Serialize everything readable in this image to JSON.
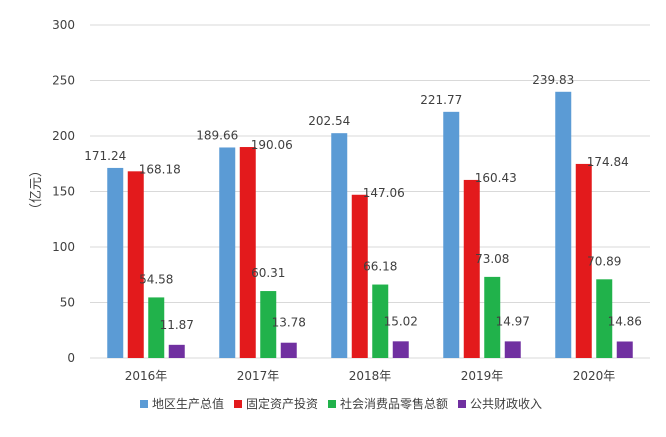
{
  "chart_data": {
    "type": "bar",
    "categories": [
      "2016年",
      "2017年",
      "2018年",
      "2019年",
      "2020年"
    ],
    "series": [
      {
        "name": "地区生产总值",
        "values": [
          171.24,
          189.66,
          202.54,
          221.77,
          239.83
        ],
        "color": "#5b9bd5"
      },
      {
        "name": "固定资产投资",
        "values": [
          168.18,
          190.06,
          147.06,
          160.43,
          174.84
        ],
        "color": "#e31a1c"
      },
      {
        "name": "社会消费品零售总额",
        "values": [
          54.58,
          60.31,
          66.18,
          73.08,
          70.89
        ],
        "color": "#21b24b"
      },
      {
        "name": "公共财政收入",
        "values": [
          11.87,
          13.78,
          15.02,
          14.97,
          14.86
        ],
        "color": "#7030a0"
      }
    ],
    "ylabel": "（亿元）",
    "ylim": [
      0,
      300
    ],
    "yticks": [
      0,
      50,
      100,
      150,
      200,
      250,
      300
    ],
    "grid": "horizontal",
    "legend": "bottom"
  }
}
